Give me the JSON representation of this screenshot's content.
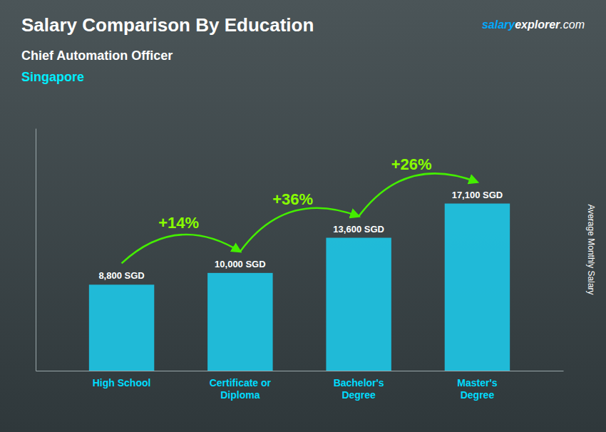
{
  "chart_data": {
    "type": "bar",
    "title": "Salary Comparison By Education",
    "subtitle": "Chief Automation Officer",
    "location": "Singapore",
    "brand": [
      "salary",
      "explorer",
      ".com"
    ],
    "ylabel": "Average Monthly Salary",
    "categories": [
      "High School",
      "Certificate or\nDiploma",
      "Bachelor's\nDegree",
      "Master's\nDegree"
    ],
    "values": [
      8800,
      10000,
      13600,
      17100
    ],
    "value_labels": [
      "8,800 SGD",
      "10,000 SGD",
      "13,600 SGD",
      "17,100 SGD"
    ],
    "data_labels": true,
    "annotations": [
      "+14%",
      "+36%",
      "+26%"
    ],
    "color": "#1EC8E8",
    "ylim": [
      0,
      24795
    ],
    "tick_labels": "x"
  }
}
